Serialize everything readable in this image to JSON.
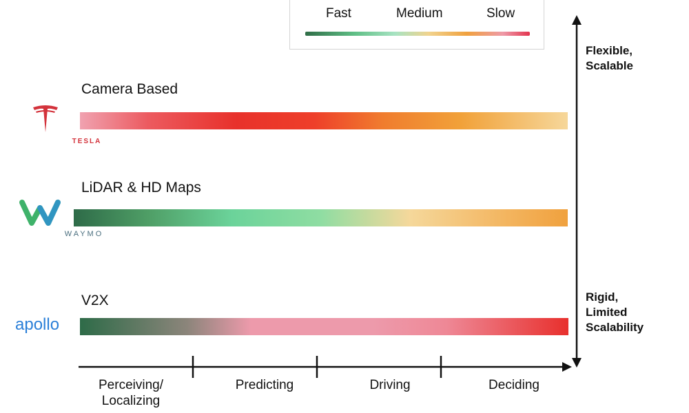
{
  "legend": {
    "fast_label": "Fast",
    "medium_label": "Medium",
    "slow_label": "Slow",
    "gradient_colors": [
      "#2f6d47",
      "#5fbf86",
      "#a7e3c2",
      "#f1d38e",
      "#f0a13e",
      "#ee9aa8",
      "#e3344f"
    ]
  },
  "approaches": [
    {
      "title": "Camera Based",
      "logo": "tesla-logo",
      "logo_text": "TESLA"
    },
    {
      "title": "LiDAR & HD Maps",
      "logo": "waymo-logo",
      "logo_text": "WAYMO"
    },
    {
      "title": "V2X",
      "logo": "apollo-logo",
      "logo_text": "apollo"
    }
  ],
  "scalability_axis": {
    "top_label": "Flexible,\nScalable",
    "bottom_label": "Rigid,\nLimited\nScalability"
  },
  "stages": [
    "Perceiving/\nLocalizing",
    "Predicting",
    "Driving",
    "Deciding"
  ],
  "colors": {
    "tesla_red": "#d3323b",
    "waymo_green": "#3fb26a",
    "waymo_blue": "#2e8fd0",
    "apollo_blue": "#2a7fd8"
  }
}
